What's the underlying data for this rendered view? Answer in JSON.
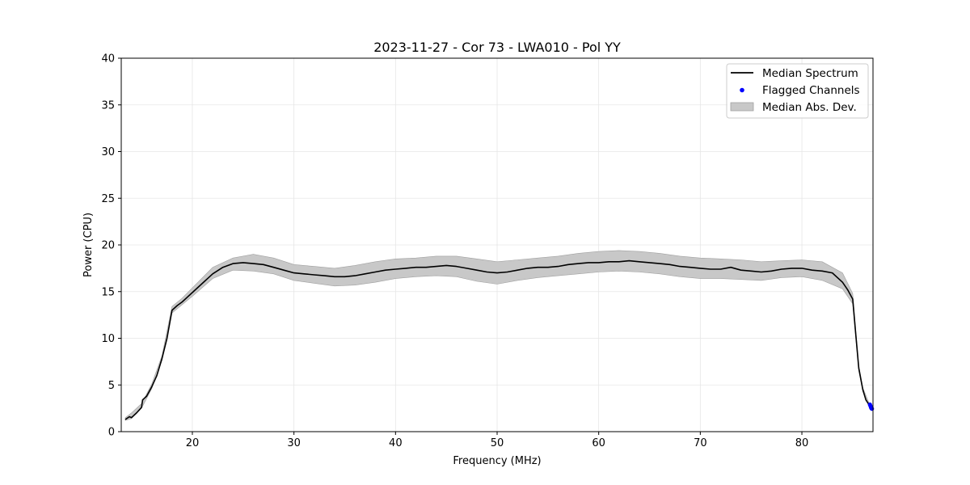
{
  "chart_data": {
    "type": "line",
    "title": "2023-11-27 - Cor 73 - LWA010 - Pol YY",
    "xlabel": "Frequency (MHz)",
    "ylabel": "Power (CPU)",
    "xlim": [
      13,
      87
    ],
    "ylim": [
      0,
      40
    ],
    "xticks": [
      20,
      30,
      40,
      50,
      60,
      70,
      80
    ],
    "yticks": [
      0,
      5,
      10,
      15,
      20,
      25,
      30,
      35,
      40
    ],
    "grid": true,
    "legend_position": "top-right",
    "colors": {
      "median": "#000000",
      "flagged": "#0000ff",
      "mad_fill": "#c8c8c8",
      "mad_edge": "#a0a0a0",
      "grid": "#e6e6e6"
    },
    "series": [
      {
        "name": "Median Spectrum",
        "kind": "line",
        "x": [
          13.4,
          13.8,
          14.0,
          14.5,
          15.0,
          15.1,
          15.5,
          16.0,
          16.5,
          17.0,
          17.5,
          18.0,
          18.5,
          19.0,
          19.5,
          20.0,
          21.0,
          22.0,
          23.0,
          24.0,
          25.0,
          26.0,
          27.0,
          28.0,
          29.0,
          30.0,
          31.0,
          32.0,
          33.0,
          34.0,
          35.0,
          36.0,
          37.0,
          38.0,
          39.0,
          40.0,
          41.0,
          42.0,
          43.0,
          44.0,
          45.0,
          46.0,
          47.0,
          48.0,
          49.0,
          50.0,
          51.0,
          52.0,
          53.0,
          54.0,
          55.0,
          56.0,
          57.0,
          58.0,
          59.0,
          60.0,
          61.0,
          62.0,
          63.0,
          64.0,
          65.0,
          66.0,
          67.0,
          68.0,
          69.0,
          70.0,
          71.0,
          72.0,
          73.0,
          74.0,
          75.0,
          76.0,
          77.0,
          78.0,
          79.0,
          80.0,
          81.0,
          82.0,
          83.0,
          84.0,
          84.5,
          85.0,
          85.3,
          85.6,
          86.0,
          86.3,
          86.6
        ],
        "values": [
          1.3,
          1.6,
          1.5,
          2.0,
          2.6,
          3.4,
          3.8,
          4.8,
          6.0,
          7.8,
          10.0,
          13.0,
          13.5,
          13.9,
          14.4,
          14.9,
          15.9,
          16.9,
          17.6,
          18.0,
          18.1,
          18.0,
          17.9,
          17.6,
          17.3,
          17.0,
          16.9,
          16.8,
          16.7,
          16.6,
          16.6,
          16.7,
          16.9,
          17.1,
          17.3,
          17.4,
          17.5,
          17.6,
          17.6,
          17.7,
          17.8,
          17.7,
          17.5,
          17.3,
          17.1,
          17.0,
          17.1,
          17.3,
          17.5,
          17.6,
          17.6,
          17.7,
          17.9,
          18.0,
          18.1,
          18.1,
          18.2,
          18.2,
          18.3,
          18.2,
          18.1,
          18.0,
          17.9,
          17.7,
          17.6,
          17.5,
          17.4,
          17.4,
          17.6,
          17.3,
          17.2,
          17.1,
          17.2,
          17.4,
          17.5,
          17.5,
          17.3,
          17.2,
          17.0,
          16.0,
          15.2,
          14.2,
          10.5,
          6.8,
          4.5,
          3.4,
          2.9
        ]
      },
      {
        "name": "Flagged Channels",
        "kind": "scatter",
        "x": [
          86.7,
          86.75,
          86.8,
          86.85,
          86.9
        ],
        "values": [
          2.9,
          2.75,
          2.6,
          2.5,
          2.45
        ]
      },
      {
        "name": "Median Abs. Dev.",
        "kind": "band",
        "x": [
          13.4,
          14.0,
          15.0,
          16.0,
          17.0,
          18.0,
          19.0,
          20.0,
          22.0,
          24.0,
          26.0,
          28.0,
          30.0,
          32.0,
          34.0,
          36.0,
          38.0,
          40.0,
          42.0,
          44.0,
          46.0,
          48.0,
          50.0,
          52.0,
          54.0,
          56.0,
          58.0,
          60.0,
          62.0,
          64.0,
          66.0,
          68.0,
          70.0,
          72.0,
          74.0,
          76.0,
          78.0,
          80.0,
          82.0,
          84.0,
          85.0,
          85.3,
          85.6,
          86.0,
          86.6
        ],
        "low": [
          1.2,
          1.4,
          2.5,
          4.6,
          7.6,
          12.7,
          13.6,
          14.5,
          16.4,
          17.3,
          17.2,
          16.9,
          16.2,
          15.9,
          15.6,
          15.7,
          16.0,
          16.4,
          16.6,
          16.7,
          16.6,
          16.1,
          15.8,
          16.2,
          16.5,
          16.7,
          16.9,
          17.1,
          17.2,
          17.1,
          16.9,
          16.6,
          16.4,
          16.4,
          16.3,
          16.2,
          16.5,
          16.6,
          16.2,
          15.3,
          13.7,
          10.1,
          6.5,
          4.3,
          2.7
        ],
        "high": [
          1.5,
          2.0,
          3.0,
          5.1,
          8.1,
          13.4,
          14.3,
          15.4,
          17.6,
          18.6,
          19.0,
          18.6,
          17.9,
          17.7,
          17.5,
          17.8,
          18.2,
          18.5,
          18.6,
          18.8,
          18.8,
          18.5,
          18.2,
          18.4,
          18.6,
          18.8,
          19.1,
          19.3,
          19.4,
          19.3,
          19.1,
          18.8,
          18.6,
          18.5,
          18.4,
          18.2,
          18.3,
          18.4,
          18.2,
          17.0,
          14.8,
          10.9,
          7.1,
          4.7,
          3.1
        ]
      }
    ]
  }
}
